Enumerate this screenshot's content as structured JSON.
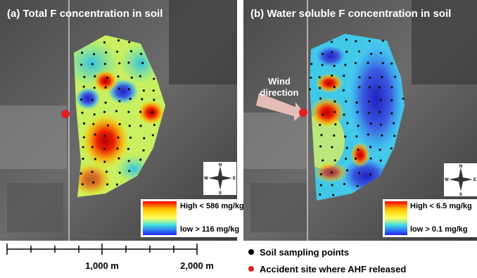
{
  "panels": [
    {
      "title": "(a) Total F concentration in soil",
      "legend_high": "High < 586 mg/kg",
      "legend_low": "low > 116 mg/kg",
      "compass": {
        "n": "N",
        "s": "S",
        "e": "E",
        "w": "W"
      }
    },
    {
      "title": "(b) Water soluble F concentration in soil",
      "annotation": [
        "Wind",
        "direction"
      ],
      "legend_high": "High < 6.5 mg/kg",
      "legend_low": "low > 0.1 mg/kg",
      "compass": {
        "n": "N",
        "s": "S",
        "e": "E",
        "w": "W"
      }
    }
  ],
  "scale_bar": {
    "labels": [
      "1,000 m",
      "2,000 m"
    ]
  },
  "legend": {
    "items": [
      "Soil sampling points",
      "Accident site where AHF released"
    ]
  }
}
